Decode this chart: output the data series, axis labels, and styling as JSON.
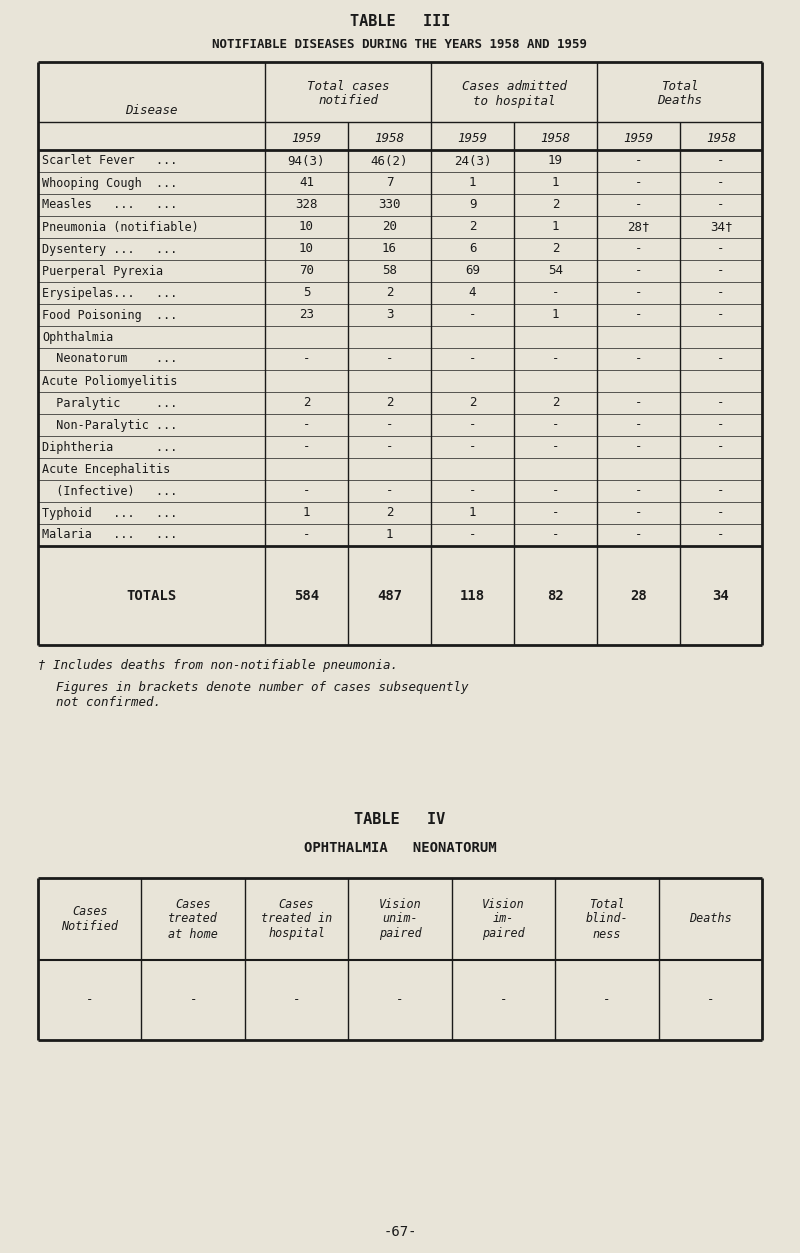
{
  "bg_color": "#e8e4d8",
  "text_color": "#1a1a1a",
  "title3": "TABLE   III",
  "subtitle3": "NOTIFIABLE DISEASES DURING THE YEARS 1958 AND 1959",
  "sub_headers": [
    "1959",
    "1958",
    "1959",
    "1958",
    "1959",
    "1958"
  ],
  "diseases": [
    [
      "Scarlet Fever   ...",
      false
    ],
    [
      "Whooping Cough  ...",
      false
    ],
    [
      "Measles   ...   ...",
      false
    ],
    [
      "Pneumonia (notifiable)",
      false
    ],
    [
      "Dysentery ...   ...",
      false
    ],
    [
      "Puerperal Pyrexia",
      false
    ],
    [
      "Erysipelas...   ...",
      false
    ],
    [
      "Food Poisoning  ...",
      false
    ],
    [
      "Ophthalmia",
      false
    ],
    [
      "  Neonatorum    ...",
      false
    ],
    [
      "Acute Poliomyelitis",
      false
    ],
    [
      "  Paralytic     ...",
      false
    ],
    [
      "  Non-Paralytic ...",
      false
    ],
    [
      "Diphtheria      ...",
      false
    ],
    [
      "Acute Encephalitis",
      false
    ],
    [
      "  (Infective)   ...",
      false
    ],
    [
      "Typhoid   ...   ...",
      false
    ],
    [
      "Malaria   ...   ...",
      false
    ]
  ],
  "data": [
    [
      "94(3)",
      "46(2)",
      "24(3)",
      "19",
      "-",
      "-"
    ],
    [
      "41",
      "7",
      "1",
      "1",
      "-",
      "-"
    ],
    [
      "328",
      "330",
      "9",
      "2",
      "-",
      "-"
    ],
    [
      "10",
      "20",
      "2",
      "1",
      "28†",
      "34†"
    ],
    [
      "10",
      "16",
      "6",
      "2",
      "-",
      "-"
    ],
    [
      "70",
      "58",
      "69",
      "54",
      "-",
      "-"
    ],
    [
      "5",
      "2",
      "4",
      "-",
      "-",
      "-"
    ],
    [
      "23",
      "3",
      "-",
      "1",
      "-",
      "-"
    ],
    [
      "",
      "",
      "",
      "",
      "",
      ""
    ],
    [
      "-",
      "-",
      "-",
      "-",
      "-",
      "-"
    ],
    [
      "",
      "",
      "",
      "",
      "",
      ""
    ],
    [
      "2",
      "2",
      "2",
      "2",
      "-",
      "-"
    ],
    [
      "-",
      "-",
      "-",
      "-",
      "-",
      "-"
    ],
    [
      "-",
      "-",
      "-",
      "-",
      "-",
      "-"
    ],
    [
      "",
      "",
      "",
      "",
      "",
      ""
    ],
    [
      "-",
      "-",
      "-",
      "-",
      "-",
      "-"
    ],
    [
      "1",
      "2",
      "1",
      "-",
      "-",
      "-"
    ],
    [
      "-",
      "1",
      "-",
      "-",
      "-",
      "-"
    ]
  ],
  "totals": [
    "584",
    "487",
    "118",
    "82",
    "28",
    "34"
  ],
  "footnote1": "† Includes deaths from non-notifiable pneumonia.",
  "footnote2": "Figures in brackets denote number of cases subsequently",
  "footnote3": "not confirmed.",
  "title4": "TABLE   IV",
  "subtitle4": "OPHTHALMIA   NEONATORUM",
  "t4_headers": [
    "Cases\nNotified",
    "Cases\ntreated\nat home",
    "Cases\ntreated in\nhospital",
    "Vision\nunim-\npaired",
    "Vision\nim-\npaired",
    "Total\nblind-\nness",
    "Deaths"
  ],
  "t4_data": [
    "-",
    "-",
    "-",
    "-",
    "-",
    "-",
    "-"
  ],
  "page_num": "-67-"
}
